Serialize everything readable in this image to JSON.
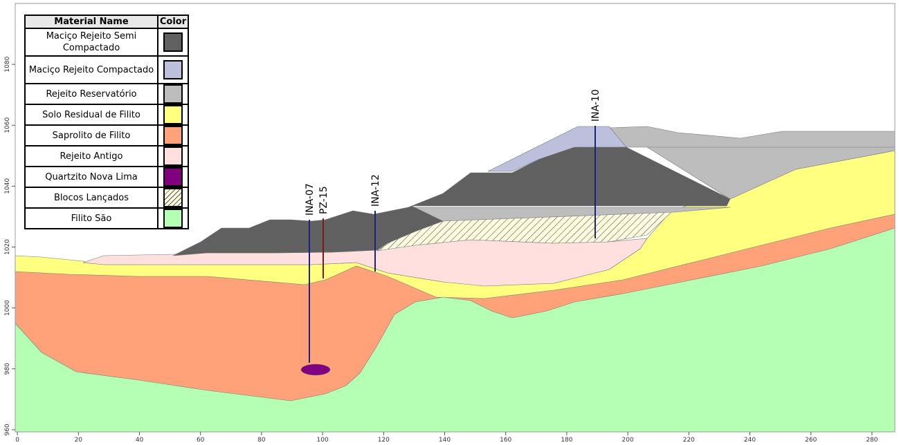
{
  "chart_data": {
    "type": "section",
    "legend": {
      "header": {
        "name": "Material Name",
        "color": "Color"
      },
      "materials": [
        {
          "name": "Maciço Rejeito Semi Compactado",
          "color": "#606060"
        },
        {
          "name": "Maciço Rejeito Compactado",
          "color": "#bcc0dc"
        },
        {
          "name": "Rejeito Reservatório",
          "color": "#bdbdbd"
        },
        {
          "name": "Solo Residual de Filito",
          "color": "#ffff80"
        },
        {
          "name": "Saprolito de Filito",
          "color": "#ffa279"
        },
        {
          "name": "Rejeito Antigo",
          "color": "#ffe0de"
        },
        {
          "name": "Quartzito Nova Lima",
          "color": "#800080"
        },
        {
          "name": "Blocos Lançados",
          "color": "#fffde0",
          "hatched": true
        },
        {
          "name": "Filito São",
          "color": "#b4ffb4"
        }
      ]
    },
    "instruments": [
      {
        "name": "INA-07",
        "color": "#1a237e"
      },
      {
        "name": "PZ-15",
        "color": "#7b1a1a"
      },
      {
        "name": "INA-12",
        "color": "#1a237e"
      },
      {
        "name": "INA-10",
        "color": "#1a237e"
      }
    ],
    "xlim": [
      -0.7,
      287.5
    ],
    "xticks": [
      0,
      20,
      40,
      60,
      80,
      100,
      120,
      140,
      160,
      180,
      200,
      220,
      240,
      260,
      280
    ],
    "ylim": [
      959.3,
      1100
    ],
    "yticks": [
      960,
      980,
      1000,
      1020,
      1040,
      1060,
      1080
    ]
  }
}
